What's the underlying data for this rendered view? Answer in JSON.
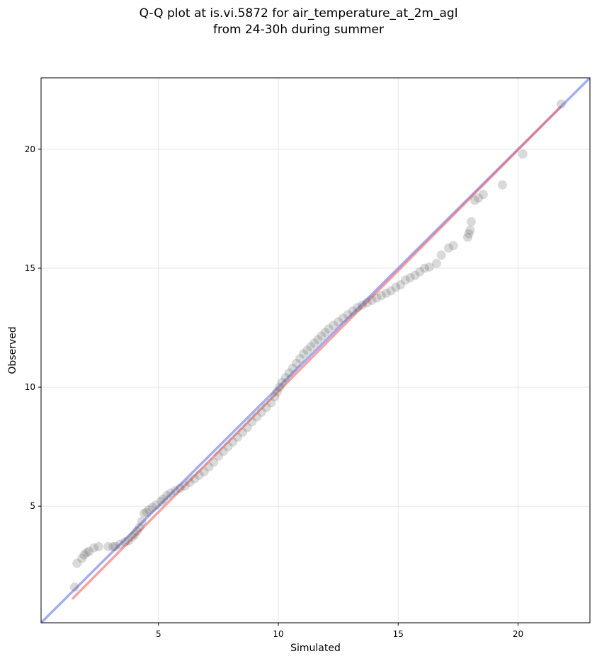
{
  "chart_data": {
    "type": "scatter",
    "title": "Q-Q plot at is.vi.5872 for air_temperature_at_2m_agl",
    "subtitle": "from 24-30h during summer",
    "xlabel": "Simulated",
    "ylabel": "Observed",
    "xlim": [
      0.1,
      23.0
    ],
    "ylim": [
      0.1,
      23.0
    ],
    "grid": true,
    "xticks": [
      5,
      10,
      15,
      20
    ],
    "yticks": [
      5,
      10,
      15,
      20
    ],
    "reference_line": {
      "color": "#6677ee",
      "x": [
        0.1,
        23.0
      ],
      "y": [
        0.1,
        23.0
      ]
    },
    "fit_line": {
      "color": "#ee6666",
      "x": [
        1.4,
        21.8
      ],
      "y": [
        1.1,
        21.8
      ]
    },
    "series": [
      {
        "type": "scatter",
        "color": "#555555",
        "points": [
          [
            1.5,
            1.6
          ],
          [
            1.6,
            2.6
          ],
          [
            1.8,
            2.8
          ],
          [
            1.9,
            2.95
          ],
          [
            2.0,
            3.05
          ],
          [
            2.1,
            3.1
          ],
          [
            2.3,
            3.25
          ],
          [
            2.5,
            3.3
          ],
          [
            2.9,
            3.3
          ],
          [
            3.1,
            3.3
          ],
          [
            3.2,
            3.3
          ],
          [
            3.4,
            3.4
          ],
          [
            3.6,
            3.5
          ],
          [
            3.75,
            3.55
          ],
          [
            3.9,
            3.7
          ],
          [
            4.0,
            3.8
          ],
          [
            4.1,
            3.95
          ],
          [
            4.2,
            4.1
          ],
          [
            4.3,
            4.35
          ],
          [
            4.4,
            4.7
          ],
          [
            4.5,
            4.75
          ],
          [
            4.6,
            4.85
          ],
          [
            4.75,
            4.95
          ],
          [
            4.9,
            5.05
          ],
          [
            5.1,
            5.2
          ],
          [
            5.2,
            5.3
          ],
          [
            5.35,
            5.45
          ],
          [
            5.5,
            5.55
          ],
          [
            5.7,
            5.65
          ],
          [
            5.9,
            5.75
          ],
          [
            6.1,
            5.85
          ],
          [
            6.3,
            6.0
          ],
          [
            6.5,
            6.15
          ],
          [
            6.7,
            6.3
          ],
          [
            6.9,
            6.45
          ],
          [
            7.1,
            6.65
          ],
          [
            7.3,
            6.85
          ],
          [
            7.5,
            7.1
          ],
          [
            7.7,
            7.3
          ],
          [
            7.9,
            7.5
          ],
          [
            8.1,
            7.7
          ],
          [
            8.3,
            7.9
          ],
          [
            8.5,
            8.1
          ],
          [
            8.7,
            8.3
          ],
          [
            8.9,
            8.55
          ],
          [
            9.1,
            8.75
          ],
          [
            9.3,
            8.95
          ],
          [
            9.5,
            9.15
          ],
          [
            9.7,
            9.35
          ],
          [
            9.85,
            9.6
          ],
          [
            9.95,
            9.8
          ],
          [
            10.05,
            10.0
          ],
          [
            10.15,
            10.2
          ],
          [
            10.3,
            10.4
          ],
          [
            10.45,
            10.6
          ],
          [
            10.6,
            10.8
          ],
          [
            10.75,
            11.0
          ],
          [
            10.9,
            11.2
          ],
          [
            11.05,
            11.4
          ],
          [
            11.2,
            11.55
          ],
          [
            11.35,
            11.7
          ],
          [
            11.5,
            11.85
          ],
          [
            11.65,
            12.0
          ],
          [
            11.8,
            12.15
          ],
          [
            11.95,
            12.3
          ],
          [
            12.1,
            12.45
          ],
          [
            12.3,
            12.6
          ],
          [
            12.5,
            12.75
          ],
          [
            12.7,
            12.9
          ],
          [
            12.9,
            13.05
          ],
          [
            13.1,
            13.2
          ],
          [
            13.3,
            13.35
          ],
          [
            13.5,
            13.45
          ],
          [
            13.7,
            13.55
          ],
          [
            13.9,
            13.65
          ],
          [
            14.1,
            13.75
          ],
          [
            14.3,
            13.85
          ],
          [
            14.5,
            13.95
          ],
          [
            14.7,
            14.05
          ],
          [
            14.9,
            14.2
          ],
          [
            15.1,
            14.3
          ],
          [
            15.3,
            14.5
          ],
          [
            15.5,
            14.6
          ],
          [
            15.7,
            14.7
          ],
          [
            15.9,
            14.85
          ],
          [
            16.1,
            15.0
          ],
          [
            16.3,
            15.05
          ],
          [
            16.6,
            15.2
          ],
          [
            16.8,
            15.55
          ],
          [
            17.1,
            15.85
          ],
          [
            17.3,
            15.95
          ],
          [
            17.9,
            16.3
          ],
          [
            17.95,
            16.45
          ],
          [
            18.0,
            16.6
          ],
          [
            18.05,
            16.95
          ],
          [
            18.2,
            17.85
          ],
          [
            18.35,
            17.95
          ],
          [
            18.55,
            18.1
          ],
          [
            19.35,
            18.5
          ],
          [
            20.2,
            19.8
          ],
          [
            21.8,
            21.9
          ]
        ]
      }
    ]
  }
}
